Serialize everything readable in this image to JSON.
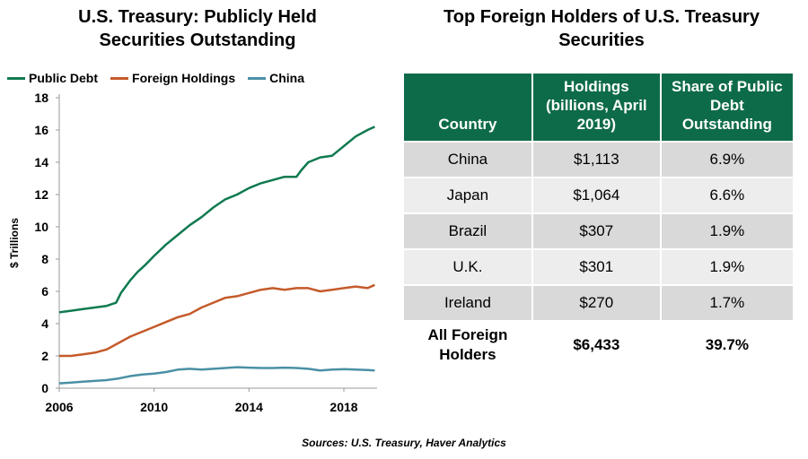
{
  "chart_data": {
    "type": "line",
    "title": "U.S. Treasury: Publicly Held Securities Outstanding",
    "ylabel": "$ Trillions",
    "xlabel": "",
    "xlim": [
      2006,
      2019.4
    ],
    "ylim": [
      0,
      18
    ],
    "x_ticks": [
      "2006",
      "2010",
      "2014",
      "2018"
    ],
    "y_ticks": [
      "0",
      "2",
      "4",
      "6",
      "8",
      "10",
      "12",
      "14",
      "16",
      "18"
    ],
    "grid": false,
    "legend_position": "top",
    "series": [
      {
        "name": "Public Debt",
        "color": "#0f7a4f",
        "x": [
          2006.0,
          2006.5,
          2007.0,
          2007.5,
          2008.0,
          2008.4,
          2008.6,
          2008.8,
          2009.0,
          2009.3,
          2009.6,
          2010.0,
          2010.5,
          2011.0,
          2011.5,
          2012.0,
          2012.5,
          2013.0,
          2013.5,
          2014.0,
          2014.5,
          2015.0,
          2015.5,
          2016.0,
          2016.2,
          2016.5,
          2017.0,
          2017.5,
          2018.0,
          2018.5,
          2019.0,
          2019.3
        ],
        "values": [
          4.7,
          4.8,
          4.9,
          5.0,
          5.1,
          5.3,
          5.9,
          6.3,
          6.7,
          7.2,
          7.6,
          8.2,
          8.9,
          9.5,
          10.1,
          10.6,
          11.2,
          11.7,
          12.0,
          12.4,
          12.7,
          12.9,
          13.1,
          13.1,
          13.5,
          14.0,
          14.3,
          14.4,
          15.0,
          15.6,
          16.0,
          16.2
        ]
      },
      {
        "name": "Foreign Holdings",
        "color": "#c45a2a",
        "x": [
          2006.0,
          2006.5,
          2007.0,
          2007.5,
          2008.0,
          2008.5,
          2009.0,
          2009.5,
          2010.0,
          2010.5,
          2011.0,
          2011.5,
          2012.0,
          2012.5,
          2013.0,
          2013.5,
          2014.0,
          2014.5,
          2015.0,
          2015.5,
          2016.0,
          2016.5,
          2017.0,
          2017.5,
          2018.0,
          2018.5,
          2019.0,
          2019.3
        ],
        "values": [
          2.0,
          2.0,
          2.1,
          2.2,
          2.4,
          2.8,
          3.2,
          3.5,
          3.8,
          4.1,
          4.4,
          4.6,
          5.0,
          5.3,
          5.6,
          5.7,
          5.9,
          6.1,
          6.2,
          6.1,
          6.2,
          6.2,
          6.0,
          6.1,
          6.2,
          6.3,
          6.2,
          6.4
        ]
      },
      {
        "name": "China",
        "color": "#4a90a4",
        "x": [
          2006.0,
          2006.5,
          2007.0,
          2007.5,
          2008.0,
          2008.5,
          2009.0,
          2009.5,
          2010.0,
          2010.5,
          2011.0,
          2011.5,
          2012.0,
          2012.5,
          2013.0,
          2013.5,
          2014.0,
          2014.5,
          2015.0,
          2015.5,
          2016.0,
          2016.5,
          2017.0,
          2017.5,
          2018.0,
          2018.5,
          2019.0,
          2019.3
        ],
        "values": [
          0.3,
          0.35,
          0.4,
          0.45,
          0.5,
          0.6,
          0.75,
          0.85,
          0.9,
          1.0,
          1.15,
          1.2,
          1.15,
          1.2,
          1.25,
          1.3,
          1.27,
          1.25,
          1.25,
          1.27,
          1.25,
          1.2,
          1.1,
          1.15,
          1.18,
          1.15,
          1.12,
          1.1
        ]
      }
    ]
  },
  "table": {
    "title": "Top Foreign Holders of U.S. Treasury Securities",
    "headers": [
      "Country",
      "Holdings (billions, April 2019)",
      "Share of Public Debt Outstanding"
    ],
    "rows": [
      [
        "China",
        "$1,113",
        "6.9%"
      ],
      [
        "Japan",
        "$1,064",
        "6.6%"
      ],
      [
        "Brazil",
        "$307",
        "1.9%"
      ],
      [
        "U.K.",
        "$301",
        "1.9%"
      ],
      [
        "Ireland",
        "$270",
        "1.7%"
      ]
    ],
    "total": [
      "All Foreign Holders",
      "$6,433",
      "39.7%"
    ],
    "header_color": "#0e6b49"
  },
  "source": "Sources: U.S. Treasury, Haver Analytics"
}
